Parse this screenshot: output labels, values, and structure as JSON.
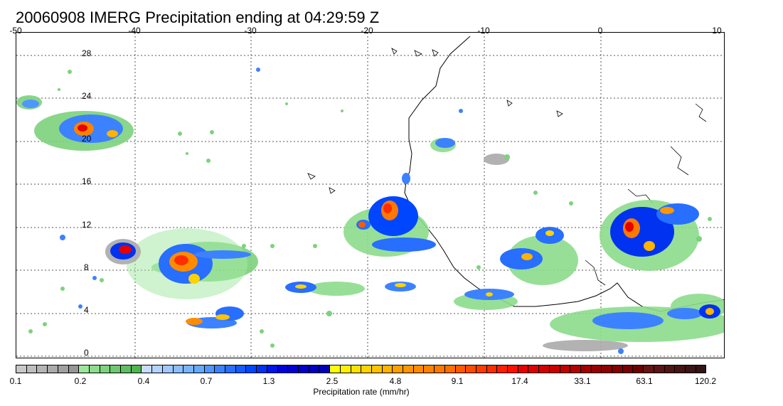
{
  "title": "20060908 IMERG Precipitation ending at 04:29:59 Z",
  "map": {
    "lon_labels": [
      "-50",
      "-40",
      "-30",
      "-20",
      "-10",
      "0",
      "10"
    ],
    "lat_labels": [
      "28",
      "24",
      "20",
      "16",
      "12",
      "8",
      "4",
      "0"
    ],
    "gridline_style": "dotted",
    "coastline_color": "#000000"
  },
  "colorbar": {
    "caption": "Precipitation rate (mm/hr)",
    "tick_labels": [
      "0.1",
      "0.2",
      "0.4",
      "0.7",
      "1.3",
      "2.5",
      "4.8",
      "9.1",
      "17.4",
      "33.1",
      "63.1",
      "120.2"
    ],
    "colors": [
      "#c8c8c8",
      "#bebebe",
      "#b4b4b4",
      "#aaaaaa",
      "#a0a0a0",
      "#969696",
      "#9be69b",
      "#8cdc8c",
      "#7dd27d",
      "#6ec86e",
      "#5fbe5f",
      "#50b450",
      "#c8dcff",
      "#b4d2ff",
      "#a0c8ff",
      "#8cbeff",
      "#78b4ff",
      "#64aaff",
      "#5096ff",
      "#3c82ff",
      "#286eff",
      "#145aff",
      "#0046ff",
      "#0032f0",
      "#0014e6",
      "#0000dc",
      "#0000d2",
      "#0000c8",
      "#0000be",
      "#0000b4",
      "#ffff00",
      "#fff000",
      "#ffe100",
      "#ffd200",
      "#ffc300",
      "#ffb400",
      "#ffa000",
      "#ff9600",
      "#ff8c00",
      "#ff8200",
      "#ff7800",
      "#ff6e00",
      "#ff5a00",
      "#ff4b00",
      "#ff3c00",
      "#ff2d00",
      "#ff1e00",
      "#ff0f00",
      "#e60000",
      "#dc0000",
      "#d20000",
      "#c80000",
      "#be0000",
      "#b40000",
      "#a00000",
      "#960000",
      "#8c0000",
      "#820000",
      "#780000",
      "#6e0000",
      "#641414",
      "#5a1414",
      "#501414",
      "#461414",
      "#3c1414",
      "#321414"
    ]
  }
}
